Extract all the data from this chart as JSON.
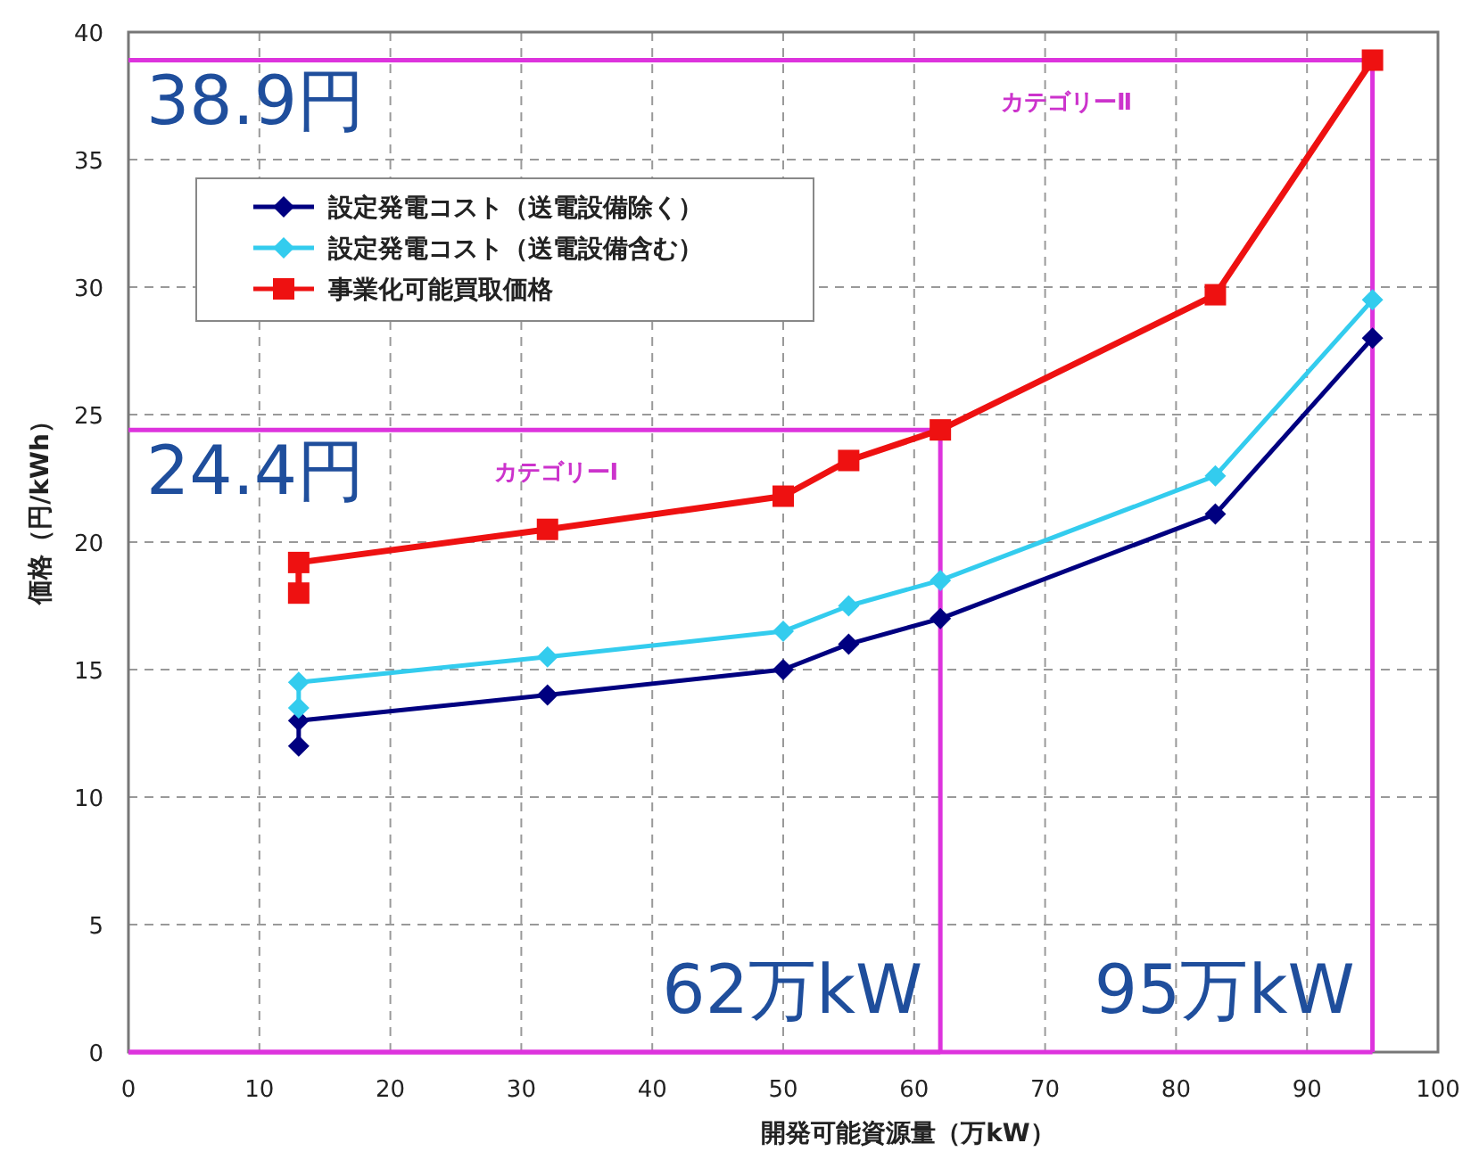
{
  "chart_data": {
    "type": "line",
    "xlabel": "開発可能資源量（万kW）",
    "ylabel": "価格（円/kWh）",
    "xlim": [
      0,
      100
    ],
    "xticks": [
      0,
      10,
      20,
      30,
      40,
      50,
      60,
      70,
      80,
      90,
      100
    ],
    "ylim": [
      0,
      40
    ],
    "yticks": [
      0,
      5,
      10,
      15,
      20,
      25,
      30,
      35,
      40
    ],
    "grid": true,
    "legend": "top left",
    "line_style": "solid",
    "series": [
      {
        "name": "設定発電コスト（送電設備除く）",
        "color": "#000080",
        "marker": "diamond",
        "x": [
          13,
          13,
          32,
          50,
          55,
          62,
          83,
          95
        ],
        "values": [
          12,
          13,
          14,
          15,
          16,
          17,
          21.1,
          28
        ]
      },
      {
        "name": "設定発電コスト（送電設備含む）",
        "color": "#33ccee",
        "marker": "diamond",
        "x": [
          13,
          13,
          32,
          50,
          55,
          62,
          83,
          95
        ],
        "values": [
          13.5,
          14.5,
          15.5,
          16.5,
          17.5,
          18.5,
          22.6,
          29.5
        ]
      },
      {
        "name": "事業化可能買取価格",
        "color": "#ee1111",
        "marker": "square",
        "x": [
          13,
          13,
          32,
          50,
          55,
          62,
          83,
          95
        ],
        "values": [
          18,
          19.2,
          20.5,
          21.8,
          23.2,
          24.4,
          29.7,
          38.9
        ]
      }
    ],
    "ref_lines": [
      {
        "axis": "y",
        "value": 24.4,
        "label": "24.4円",
        "color": "#dd33dd"
      },
      {
        "axis": "x",
        "value": 62,
        "label": "62万kW",
        "color": "#dd33dd"
      },
      {
        "axis": "y",
        "value": 38.9,
        "label": "38.9円",
        "color": "#dd33dd"
      },
      {
        "axis": "x",
        "value": 95,
        "label": "95万kW",
        "color": "#dd33dd"
      }
    ],
    "annotations": [
      "カテゴリーⅠ",
      "カテゴリーⅡ"
    ]
  }
}
